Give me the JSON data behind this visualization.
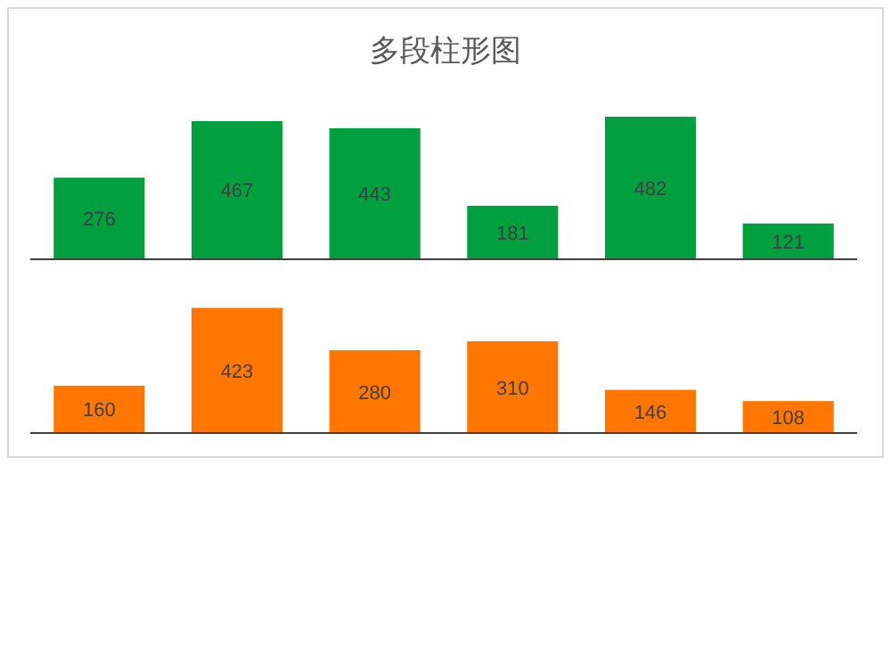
{
  "chart_data": [
    {
      "type": "bar",
      "title": "多段柱形图",
      "categories": [
        null,
        null,
        null,
        null,
        null,
        null
      ],
      "values": [
        276,
        467,
        443,
        181,
        482,
        121
      ],
      "color": "#00a03e",
      "data_labels": true
    },
    {
      "type": "bar",
      "categories": [
        null,
        null,
        null,
        null,
        null,
        null
      ],
      "values": [
        160,
        423,
        280,
        310,
        146,
        108
      ],
      "color": "#ff7700",
      "data_labels": true
    }
  ]
}
